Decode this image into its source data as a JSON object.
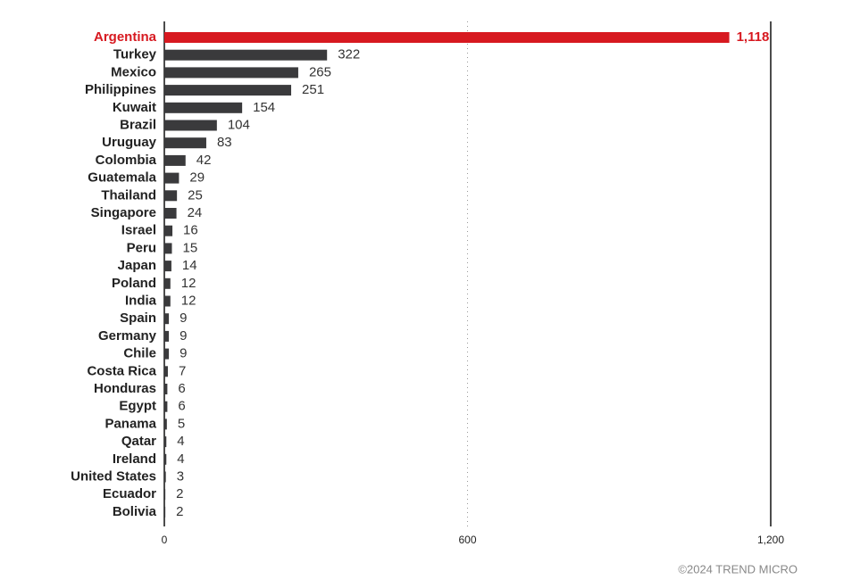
{
  "chart_data": {
    "type": "bar",
    "orientation": "horizontal",
    "categories": [
      "Argentina",
      "Turkey",
      "Mexico",
      "Philippines",
      "Kuwait",
      "Brazil",
      "Uruguay",
      "Colombia",
      "Guatemala",
      "Thailand",
      "Singapore",
      "Israel",
      "Peru",
      "Japan",
      "Poland",
      "India",
      "Spain",
      "Germany",
      "Chile",
      "Costa Rica",
      "Honduras",
      "Egypt",
      "Panama",
      "Qatar",
      "Ireland",
      "United States",
      "Ecuador",
      "Bolivia"
    ],
    "values": [
      1118,
      322,
      265,
      251,
      154,
      104,
      83,
      42,
      29,
      25,
      24,
      16,
      15,
      14,
      12,
      12,
      9,
      9,
      9,
      7,
      6,
      6,
      5,
      4,
      4,
      3,
      2,
      2
    ],
    "value_labels": [
      "1,118",
      "322",
      "265",
      "251",
      "154",
      "104",
      "83",
      "42",
      "29",
      "25",
      "24",
      "16",
      "15",
      "14",
      "12",
      "12",
      "9",
      "9",
      "9",
      "7",
      "6",
      "6",
      "5",
      "4",
      "4",
      "3",
      "2",
      "2"
    ],
    "color": "#3a3a3c",
    "colors": [
      "#d71920",
      "#3a3a3c",
      "#3a3a3c",
      "#3a3a3c",
      "#3a3a3c",
      "#3a3a3c",
      "#3a3a3c",
      "#3a3a3c",
      "#3a3a3c",
      "#3a3a3c",
      "#3a3a3c",
      "#3a3a3c",
      "#3a3a3c",
      "#3a3a3c",
      "#3a3a3c",
      "#3a3a3c",
      "#3a3a3c",
      "#3a3a3c",
      "#3a3a3c",
      "#3a3a3c",
      "#3a3a3c",
      "#3a3a3c",
      "#3a3a3c",
      "#3a3a3c",
      "#3a3a3c",
      "#3a3a3c",
      "#3a3a3c",
      "#3a3a3c"
    ],
    "xlim": [
      0,
      1200
    ],
    "xticks": [
      0,
      600,
      {
        "value": 1200,
        "label": "1,200"
      }
    ],
    "grid": true,
    "source": "©2024 TREND MICRO"
  }
}
